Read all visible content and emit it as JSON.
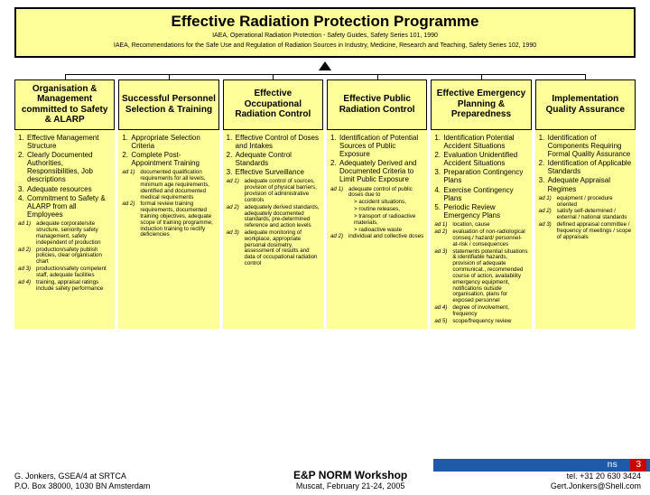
{
  "colors": {
    "box_bg": "#ffff99",
    "border": "#000000",
    "blue": "#1e5aa8",
    "red": "#c00"
  },
  "title": {
    "main": "Effective Radiation Protection Programme",
    "sub1": "IAEA, Operational Radiation Protection - Safety Guides, Safety Series 101, 1990",
    "sub2": "IAEA, Recommendations for the Safe Use and Regulation of Radiation Sources in Industry, Medicine, Research and Teaching, Safety Series 102, 1990"
  },
  "columns": [
    {
      "head": "Organisation & Management committed to Safety & ALARP",
      "items": [
        "Effective Management Structure",
        "Clearly Documented Authorities, Responsibilities, Job descriptions",
        "Adequate resources",
        "Commitment to Safety & ALARP from all Employees"
      ],
      "notes": [
        {
          "k": "ad 1)",
          "v": "adequate corporate/site structure, seniority safety management, safety independent of production"
        },
        {
          "k": "ad 2)",
          "v": "production/safety publish policies, clear organisation chart"
        },
        {
          "k": "ad 3)",
          "v": "production/safety competent staff, adequate facilities"
        },
        {
          "k": "ad 4)",
          "v": "training, appraisal ratings include safety performance"
        }
      ]
    },
    {
      "head": "Successful Personnel Selection & Training",
      "items": [
        "Appropriate Selection Criteria",
        "Complete Post-Appointment Training"
      ],
      "notes": [
        {
          "k": "ad 1)",
          "v": "documented qualification requirements for all levels, minimum age requirements, identified and documented medical requirements"
        },
        {
          "k": "ad 2)",
          "v": "formal review training requirements, documented training objectives, adequate scope of training programme, induction training to rectify deficiencies"
        }
      ]
    },
    {
      "head": "Effective Occupational Radiation Control",
      "items": [
        "Effective Control of Doses and Intakes",
        "Adequate Control Standards",
        "Effective Surveillance"
      ],
      "notes": [
        {
          "k": "ad 1)",
          "v": "adequate control of sources, provision of physical barriers, provision of administrative controls"
        },
        {
          "k": "ad 2)",
          "v": "adequately derived standards, adequately documented standards, pre-determined reference and action levels"
        },
        {
          "k": "ad 3)",
          "v": "adequate monitoring of workplace, appropriate personal dosimetry, assessment of results and data of occupational radiation control"
        }
      ]
    },
    {
      "head": "Effective Public Radiation Control",
      "items": [
        "Identification of Potential Sources of Public Exposure",
        "Adequately Derived and Documented Criteria to Limit Public Exposure"
      ],
      "notes": [
        {
          "k": "ad 1)",
          "v": "adequate control of public doses due to"
        },
        {
          "k": "",
          "v": "> accident situations,"
        },
        {
          "k": "",
          "v": "> routine releases,"
        },
        {
          "k": "",
          "v": "> transport of radioactive materials,"
        },
        {
          "k": "",
          "v": "> radioactive waste"
        },
        {
          "k": "ad 2)",
          "v": "individual and collective doses"
        }
      ]
    },
    {
      "head": "Effective Emergency Planning & Preparedness",
      "items": [
        "Identification Potential Accident Situations",
        "Evaluation Unidentified Accident Situations",
        "Preparation Contingency Plans",
        "Exercise Contingency Plans",
        "Periodic Review Emergency Plans"
      ],
      "notes": [
        {
          "k": "ad 1)",
          "v": "location, cause"
        },
        {
          "k": "ad 2)",
          "v": "evaluation of non-radiological conseq./ hazard/ personnel-at-risk / consequences"
        },
        {
          "k": "ad 3)",
          "v": "statements potential situations & identifiable hazards, provision of adequate communicat., recommended course of action, availability emergency equipment, notifications outside organisation, plans for exposed personnel"
        },
        {
          "k": "ad 4)",
          "v": "degree of involvement, frequency"
        },
        {
          "k": "ad 5)",
          "v": "scope/frequency review"
        }
      ]
    },
    {
      "head": "Implementation Quality Assurance",
      "items": [
        "Identification of Components Requiring Formal Quality Assurance",
        "Identification of Applicable Standards",
        "Adequate Appraisal Regimes"
      ],
      "notes": [
        {
          "k": "ad 1)",
          "v": "equipment / procedure oriented"
        },
        {
          "k": "ad 2)",
          "v": "satisfy self-determined / external / national standards"
        },
        {
          "k": "ad 3)",
          "v": "defined appraisal committee / frequency of meetings / scope of appraisals"
        }
      ]
    }
  ],
  "footer": {
    "left1": "G. Jonkers, GSEA/4 at SRTCA",
    "left2": "P.O. Box 38000, 1030 BN Amsterdam",
    "center_title": "E&P NORM Workshop",
    "center_sub": "Muscat, February 21-24, 2005",
    "right1": "tel. +31 20 630 3424",
    "right2": "Gert.Jonkers@Shell.com"
  },
  "bluebar": {
    "text": "ns",
    "badge": "3"
  }
}
